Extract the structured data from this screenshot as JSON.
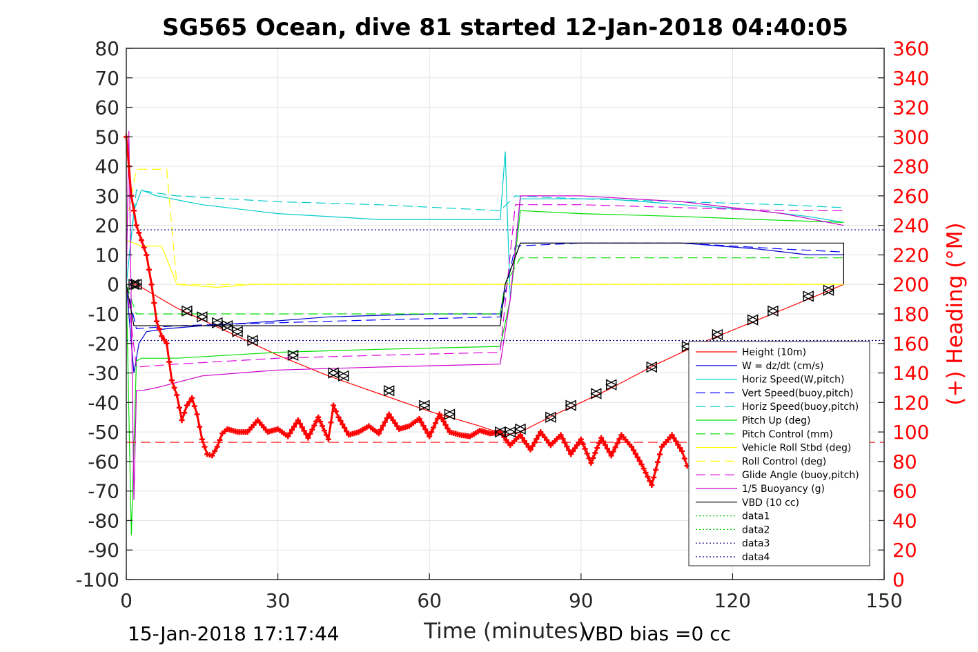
{
  "chart_data": {
    "type": "line",
    "title": "SG565 Ocean, dive 81 started 12-Jan-2018 04:40:05",
    "xlabel": "Time (minutes)",
    "ylabel": "",
    "y2label": "(+) Heading (°M)",
    "xlim": [
      0,
      150
    ],
    "ylim": [
      -100,
      80
    ],
    "y2lim": [
      0,
      360
    ],
    "xticks": [
      "0",
      "30",
      "60",
      "90",
      "120",
      "150"
    ],
    "yticks": [
      "80",
      "70",
      "60",
      "50",
      "40",
      "30",
      "20",
      "10",
      "0",
      "-10",
      "-20",
      "-30",
      "-40",
      "-50",
      "-60",
      "-70",
      "-80",
      "-90",
      "-100"
    ],
    "y2ticks": [
      "360",
      "340",
      "320",
      "300",
      "280",
      "260",
      "240",
      "220",
      "200",
      "180",
      "160",
      "140",
      "120",
      "100",
      "80",
      "60",
      "40",
      "20",
      "0"
    ],
    "grid": true,
    "legend_position": "lower-right",
    "footer_left": "15-Jan-2018 17:17:44",
    "footer_right": "VBD bias =0 cc",
    "series": [
      {
        "name": "Height (10m)",
        "color": "#ff0000",
        "style": "solid",
        "x": [
          0,
          2,
          10,
          20,
          30,
          40,
          50,
          60,
          70,
          75,
          78,
          85,
          95,
          105,
          115,
          125,
          135,
          142
        ],
        "y": [
          0,
          0,
          -8,
          -16,
          -24,
          -31,
          -37,
          -43,
          -48,
          -51,
          -50,
          -44,
          -36,
          -27,
          -19,
          -12,
          -5,
          0
        ]
      },
      {
        "name": "W = dz/dt (cm/s)",
        "color": "#0000cc",
        "style": "solid",
        "x": [
          0,
          1.5,
          2.5,
          4,
          8,
          15,
          25,
          40,
          60,
          74,
          75,
          78,
          85,
          95,
          110,
          125,
          135,
          142
        ],
        "y": [
          0,
          -30,
          -20,
          -16,
          -15,
          -14,
          -13,
          -11,
          -10,
          -10,
          0,
          14,
          14,
          14,
          14,
          12,
          10,
          10
        ]
      },
      {
        "name": "Horiz Speed(W,pitch)",
        "color": "#00cccc",
        "style": "solid",
        "x": [
          0,
          1.5,
          3,
          6,
          15,
          30,
          50,
          74,
          75,
          76,
          78,
          85,
          95,
          110,
          125,
          135,
          142
        ],
        "y": [
          0,
          25,
          32,
          30,
          27,
          24,
          22,
          22,
          45,
          -5,
          29,
          29,
          29,
          27,
          25,
          23,
          21
        ]
      },
      {
        "name": "Vert Speed(buoy,pitch)",
        "color": "#0000ff",
        "style": "dashed",
        "x": [
          0,
          2,
          10,
          30,
          50,
          74,
          77,
          90,
          110,
          130,
          142
        ],
        "y": [
          0,
          -15,
          -14,
          -13,
          -12,
          -11,
          13,
          14,
          14,
          12,
          11
        ]
      },
      {
        "name": "Horiz Speed(buoy,pitch)",
        "color": "#00cccc",
        "style": "dashed",
        "x": [
          0,
          2,
          10,
          30,
          50,
          74,
          77,
          90,
          110,
          130,
          142
        ],
        "y": [
          0,
          32,
          30,
          28,
          27,
          25,
          30,
          29,
          28,
          27,
          26
        ]
      },
      {
        "name": "Pitch Up (deg)",
        "color": "#00dd00",
        "style": "solid",
        "x": [
          0,
          1,
          2,
          3,
          10,
          30,
          50,
          74,
          76,
          78,
          90,
          110,
          125,
          142
        ],
        "y": [
          0,
          -85,
          -26,
          -25,
          -25,
          -23,
          -22,
          -21,
          -5,
          25,
          24,
          23,
          22,
          21
        ]
      },
      {
        "name": "Pitch Control (mm)",
        "color": "#00dd00",
        "style": "dashed",
        "x": [
          0,
          2,
          74,
          75,
          78,
          142
        ],
        "y": [
          0,
          -10,
          -10,
          0,
          9,
          9
        ]
      },
      {
        "name": "Vehicle Roll Stbd (deg)",
        "color": "#ffff00",
        "style": "solid",
        "x": [
          0,
          3,
          7,
          10,
          18,
          25,
          40,
          60,
          74,
          78,
          100,
          120,
          142
        ],
        "y": [
          15,
          13,
          13,
          0,
          -1,
          0,
          0,
          0,
          0,
          0,
          0,
          0,
          0
        ]
      },
      {
        "name": "Roll Control (deg)",
        "color": "#ffff00",
        "style": "dashed",
        "x": [
          0,
          2,
          8,
          10,
          40,
          74,
          78,
          142
        ],
        "y": [
          20,
          39,
          39,
          0,
          0,
          0,
          0,
          0
        ]
      },
      {
        "name": "Glide Angle (buoy,pitch)",
        "color": "#dd00dd",
        "style": "dashed",
        "x": [
          0,
          2,
          10,
          30,
          50,
          74,
          77,
          90,
          110,
          130,
          142
        ],
        "y": [
          0,
          -28,
          -27,
          -25,
          -24,
          -23,
          27,
          27,
          26,
          25,
          25
        ]
      },
      {
        "name": "1/5 Buoyancy (g)",
        "color": "#cc00cc",
        "style": "solid",
        "x": [
          0,
          0.5,
          1.5,
          2,
          3,
          6,
          15,
          30,
          50,
          74,
          76,
          78,
          90,
          110,
          130,
          142
        ],
        "y": [
          0,
          52,
          -73,
          -36,
          -36,
          -35,
          -31,
          -29,
          -28,
          -27,
          -5,
          30,
          30,
          28,
          24,
          20
        ]
      },
      {
        "name": "VBD (10 cc)",
        "color": "#000000",
        "style": "solid",
        "x": [
          0,
          1.5,
          2,
          74,
          75,
          78,
          142,
          142
        ],
        "y": [
          0,
          -14,
          -14,
          -14,
          0,
          14,
          14,
          0
        ]
      },
      {
        "name": "data1",
        "color": "#00cc00",
        "style": "dotted",
        "x": [],
        "y": []
      },
      {
        "name": "data2",
        "color": "#00cc00",
        "style": "dotted",
        "x": [],
        "y": []
      },
      {
        "name": "data3",
        "color": "#000088",
        "style": "dotted",
        "x": [
          0,
          150
        ],
        "y": [
          -19,
          -19
        ]
      },
      {
        "name": "data4",
        "color": "#000088",
        "style": "dotted",
        "x": [
          0,
          150
        ],
        "y": [
          18.5,
          18.5
        ]
      }
    ],
    "heading": {
      "color": "#ff0000",
      "x": [
        0,
        1,
        2,
        3,
        4,
        5,
        6,
        7,
        8,
        9,
        10,
        11,
        12,
        13,
        14,
        15,
        16,
        17,
        18,
        19,
        20,
        22,
        24,
        26,
        28,
        30,
        32,
        34,
        36,
        38,
        40,
        41,
        42,
        44,
        46,
        48,
        50,
        52,
        54,
        56,
        58,
        60,
        62,
        64,
        66,
        68,
        70,
        72,
        74,
        76,
        78,
        80,
        82,
        84,
        86,
        88,
        90,
        92,
        94,
        96,
        98,
        100,
        102,
        104,
        106,
        108,
        110,
        111
      ],
      "y": [
        300,
        260,
        240,
        230,
        220,
        200,
        175,
        165,
        160,
        135,
        125,
        108,
        118,
        123,
        112,
        95,
        85,
        84,
        90,
        99,
        102,
        100,
        100,
        108,
        100,
        102,
        97,
        108,
        96,
        110,
        95,
        118,
        110,
        98,
        100,
        104,
        99,
        112,
        102,
        104,
        109,
        97,
        112,
        100,
        98,
        97,
        101,
        99,
        100,
        91,
        98,
        88,
        100,
        91,
        98,
        85,
        95,
        79,
        96,
        84,
        98,
        90,
        78,
        64,
        90,
        98,
        87,
        77
      ]
    },
    "turn_markers": {
      "color": "#000000",
      "x": [
        1.5,
        2,
        12,
        15,
        18,
        20,
        22,
        25,
        33,
        41,
        43,
        52,
        59,
        64,
        74,
        76,
        78,
        84,
        88,
        93,
        96,
        104,
        111,
        117,
        124,
        128,
        135,
        139
      ],
      "y": [
        0,
        0,
        -9,
        -11,
        -13,
        -14,
        -16,
        -19,
        -24,
        -30,
        -31,
        -36,
        -41,
        -44,
        -50,
        -50,
        -49,
        -45,
        -41,
        -37,
        -34,
        -28,
        -21,
        -17,
        -12,
        -9,
        -4,
        -2
      ]
    },
    "ref_line": {
      "color": "#ff0000",
      "style": "dashed",
      "y": -53.5
    }
  }
}
